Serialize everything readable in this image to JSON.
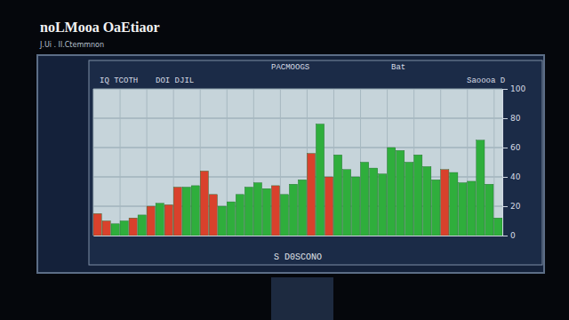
{
  "chart_data": {
    "type": "bar",
    "title": "noLMooa OaEtiaor",
    "subtitle": "J.Ui . Il.Ctemmnon",
    "x_label": "S D0SCONO",
    "annotations": [
      "IQ TCOTH",
      "DOI DJIL",
      "PACMOOGS",
      "Bat",
      "Saoooa D"
    ],
    "categories": [
      null,
      null,
      null,
      null,
      null,
      null,
      null,
      null,
      null,
      null,
      null,
      null,
      null,
      null,
      null,
      null,
      null,
      null,
      null,
      null,
      null,
      null,
      null,
      null,
      null,
      null,
      null,
      null,
      null,
      null,
      null,
      null,
      null,
      null,
      null,
      null,
      null,
      null,
      null,
      null,
      null,
      null,
      null,
      null,
      null,
      null
    ],
    "values": [
      15,
      10,
      8,
      10,
      12,
      14,
      20,
      22,
      21,
      33,
      33,
      34,
      44,
      28,
      20,
      23,
      28,
      33,
      36,
      32,
      34,
      28,
      35,
      38,
      56,
      76,
      40,
      55,
      45,
      40,
      50,
      46,
      42,
      60,
      58,
      50,
      55,
      47,
      38,
      45,
      43,
      36,
      37,
      65,
      35,
      12
    ],
    "colors": [
      "#d9412c",
      "#d9412c",
      "#2fae3c",
      "#2fae3c",
      "#d9412c",
      "#2fae3c",
      "#d9412c",
      "#2fae3c",
      "#d9412c",
      "#d9412c",
      "#2fae3c",
      "#2fae3c",
      "#d9412c",
      "#d9412c",
      "#2fae3c",
      "#2fae3c",
      "#2fae3c",
      "#2fae3c",
      "#2fae3c",
      "#2fae3c",
      "#d9412c",
      "#2fae3c",
      "#2fae3c",
      "#2fae3c",
      "#d9412c",
      "#2fae3c",
      "#d9412c",
      "#2fae3c",
      "#2fae3c",
      "#2fae3c",
      "#2fae3c",
      "#2fae3c",
      "#2fae3c",
      "#2fae3c",
      "#2fae3c",
      "#2fae3c",
      "#2fae3c",
      "#2fae3c",
      "#2fae3c",
      "#d9412c",
      "#2fae3c",
      "#2fae3c",
      "#2fae3c",
      "#2fae3c",
      "#2fae3c",
      "#2fae3c"
    ],
    "ylim": [
      0,
      100
    ],
    "yticks": [
      0,
      20,
      40,
      60,
      80,
      100
    ],
    "grid": true,
    "tick_labels": "y"
  }
}
